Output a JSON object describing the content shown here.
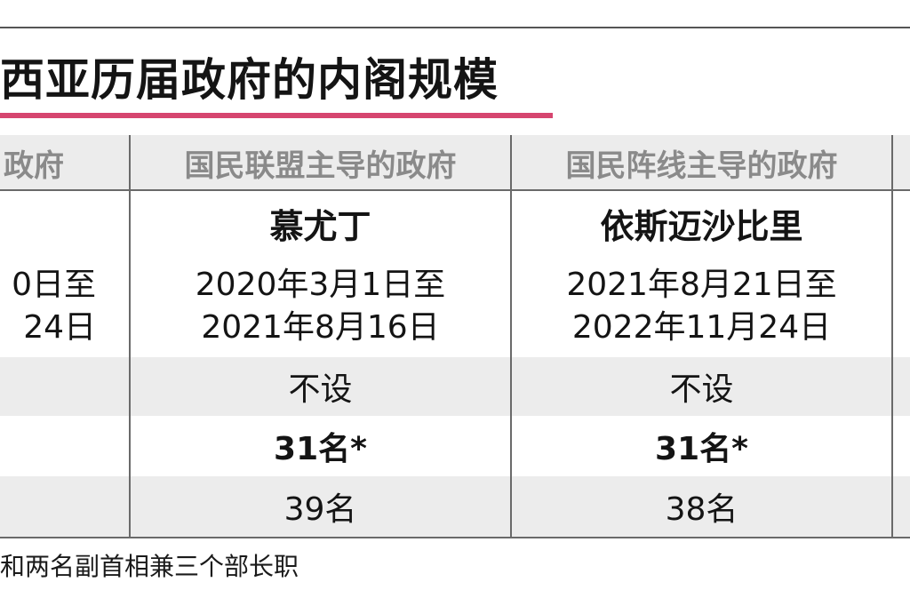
{
  "title": "西亚历届政府的内阁规模",
  "colors": {
    "title_underline": "#d6456f",
    "header_text": "#8a8a8a",
    "row_shade": "#ececec",
    "rule": "#6a6a6a"
  },
  "table": {
    "columns": [
      {
        "header": "政府",
        "pm": "",
        "date_start": "0日至",
        "date_end": "24日",
        "row_a": "",
        "row_b": "",
        "row_c": ""
      },
      {
        "header": "国民联盟主导的政府",
        "pm": "慕尤丁",
        "date_start": "2020年3月1日至",
        "date_end": "2021年8月16日",
        "row_a": "不设",
        "row_b": "31名*",
        "row_c": "39名"
      },
      {
        "header": "国民阵线主导的政府",
        "pm": "依斯迈沙比里",
        "date_start": "2021年8月21日至",
        "date_end": "2022年11月24日",
        "row_a": "不设",
        "row_b": "31名*",
        "row_c": "38名"
      }
    ]
  },
  "footnote": "和两名副首相兼三个部长职"
}
